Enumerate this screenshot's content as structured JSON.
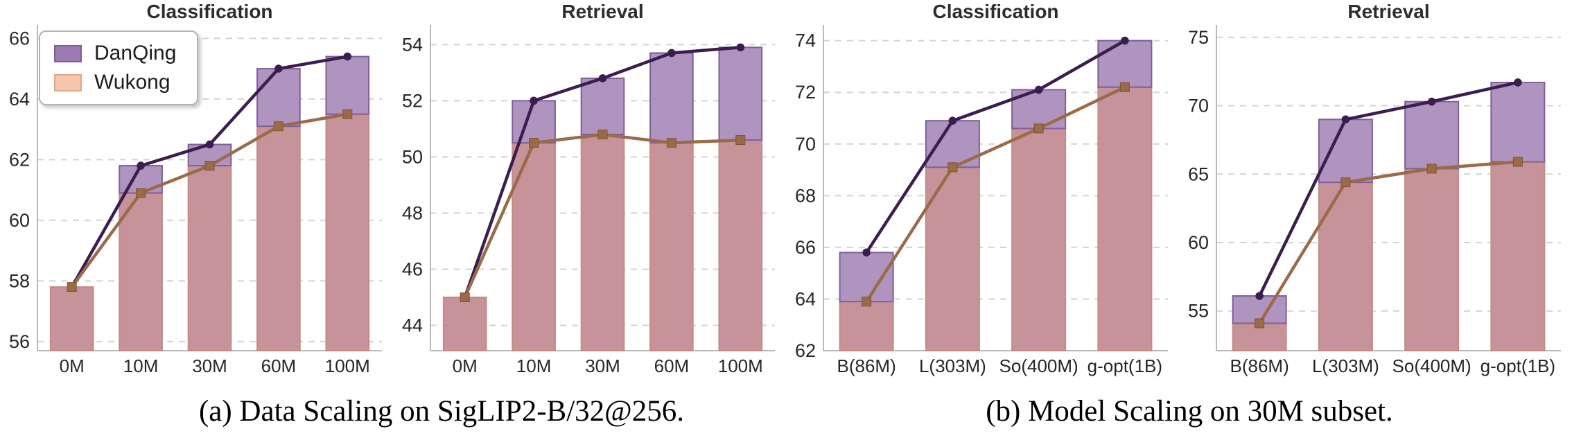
{
  "figure": {
    "captions": {
      "a": "(a) Data Scaling on SigLIP2-B/32@256.",
      "b": "(b) Model Scaling on 30M subset."
    }
  },
  "legend": {
    "position": "upper-left-of-first-panel",
    "items": [
      {
        "label": "DanQing",
        "swatch_color": "#9e7bb3",
        "swatch_border": "#7e5f99"
      },
      {
        "label": "Wukong",
        "swatch_color": "#f5c7ae",
        "swatch_border": "#dfa78c"
      }
    ]
  },
  "colors": {
    "danqing_bar_fill": "#af94c0",
    "danqing_bar_stroke": "#7e5f99",
    "overlap_bar_fill": "#c7939a",
    "overlap_bar_stroke": "#c28b84",
    "danqing_line": "#3b1d4f",
    "wukong_line": "#9b6a47",
    "wukong_marker_stroke": "#7d5330",
    "grid": "#d3d3d3",
    "spine": "#b9b9b9",
    "tick_label": "#262626",
    "title": "#2d2d2d"
  },
  "chart_data": [
    {
      "type": "bar",
      "combo": "bars+lines",
      "title": "Classification",
      "group": "(a) Data Scaling",
      "categories": [
        "0M",
        "10M",
        "30M",
        "60M",
        "100M"
      ],
      "series": [
        {
          "name": "DanQing",
          "values": [
            57.8,
            61.8,
            62.5,
            65.0,
            65.4
          ]
        },
        {
          "name": "Wukong",
          "values": [
            57.8,
            60.9,
            61.8,
            63.1,
            63.5
          ]
        }
      ],
      "yticks": [
        56,
        58,
        60,
        62,
        64,
        66
      ],
      "ylim": [
        55.7,
        66.35
      ],
      "grid": true,
      "legend": true
    },
    {
      "type": "bar",
      "combo": "bars+lines",
      "title": "Retrieval",
      "group": "(a) Data Scaling",
      "categories": [
        "0M",
        "10M",
        "30M",
        "60M",
        "100M"
      ],
      "series": [
        {
          "name": "DanQing",
          "values": [
            45.0,
            52.0,
            52.8,
            53.7,
            53.9
          ]
        },
        {
          "name": "Wukong",
          "values": [
            45.0,
            50.5,
            50.8,
            50.5,
            50.6
          ]
        }
      ],
      "yticks": [
        44,
        46,
        48,
        50,
        52,
        54
      ],
      "ylim": [
        43.1,
        54.6
      ],
      "grid": true,
      "legend": false
    },
    {
      "type": "bar",
      "combo": "bars+lines",
      "title": "Classification",
      "group": "(b) Model Scaling",
      "categories": [
        "B(86M)",
        "L(303M)",
        "So(400M)",
        "g-opt(1B)"
      ],
      "series": [
        {
          "name": "DanQing",
          "values": [
            65.8,
            70.9,
            72.1,
            74.0
          ]
        },
        {
          "name": "Wukong",
          "values": [
            63.9,
            69.1,
            70.6,
            72.2
          ]
        }
      ],
      "yticks": [
        62,
        64,
        66,
        68,
        70,
        72,
        74
      ],
      "ylim": [
        62,
        74.5
      ],
      "grid": true,
      "legend": false
    },
    {
      "type": "bar",
      "combo": "bars+lines",
      "title": "Retrieval",
      "group": "(b) Model Scaling",
      "categories": [
        "B(86M)",
        "L(303M)",
        "So(400M)",
        "g-opt(1B)"
      ],
      "series": [
        {
          "name": "DanQing",
          "values": [
            56.1,
            69.0,
            70.3,
            71.7
          ]
        },
        {
          "name": "Wukong",
          "values": [
            54.1,
            64.4,
            65.4,
            65.9
          ]
        }
      ],
      "yticks": [
        55,
        60,
        65,
        70,
        75
      ],
      "ylim": [
        52.1,
        75.7
      ],
      "grid": true,
      "legend": false
    }
  ]
}
